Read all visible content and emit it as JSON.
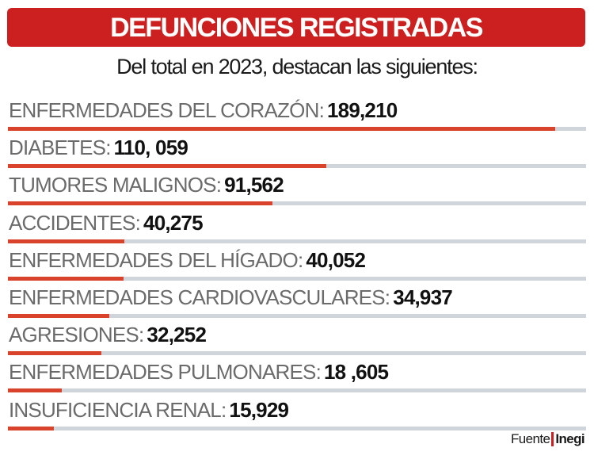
{
  "title": "DEFUNCIONES REGISTRADAS",
  "subtitle": "Del total en 2023, destacan las siguientes:",
  "colors": {
    "title_bg": "#cc1f1f",
    "bar_fill": "#d9432c",
    "bar_track": "#cfd5da",
    "label_text": "#6b6b6b",
    "value_text": "#111111"
  },
  "source": {
    "label": "Fuente",
    "org": "Inegi"
  },
  "chart_data": {
    "type": "bar",
    "orientation": "horizontal",
    "title": "DEFUNCIONES REGISTRADAS",
    "subtitle": "Del total en 2023, destacan las siguientes:",
    "categories": [
      "ENFERMEDADES DEL CORAZÓN",
      "DIABETES",
      "TUMORES MALIGNOS",
      "ACCIDENTES",
      "ENFERMEDADES DEL HÍGADO",
      "ENFERMEDADES CARDIOVASCULARES",
      "AGRESIONES",
      "ENFERMEDADES PULMONARES",
      "INSUFICIENCIA RENAL"
    ],
    "values": [
      189210,
      110059,
      91562,
      40275,
      40052,
      34937,
      32252,
      18605,
      15929
    ],
    "value_labels": [
      "189,210",
      "110, 059",
      "91,562",
      "40,275",
      "40,052",
      "34,937",
      "32,252",
      "18 ,605",
      "15,929"
    ],
    "xlim": [
      0,
      200000
    ],
    "grid": false,
    "legend": "none"
  }
}
